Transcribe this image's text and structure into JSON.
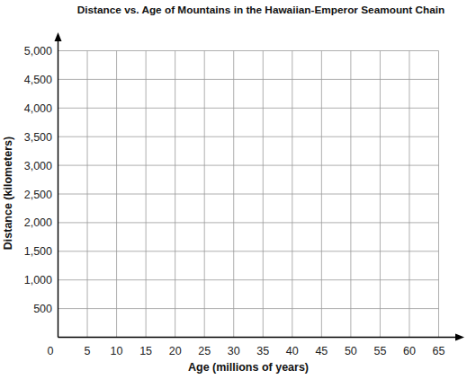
{
  "chart_data": {
    "type": "scatter",
    "title": "Distance vs. Age of Mountains in the Hawaiian-Emperor Seamount Chain",
    "x_label": "Age (millions of years)",
    "y_label": "Distance (kilometers)",
    "xlim": [
      0,
      65
    ],
    "xticks": [
      0,
      5,
      10,
      15,
      20,
      25,
      30,
      35,
      40,
      45,
      50,
      55,
      60,
      65
    ],
    "ylim": [
      0,
      5000
    ],
    "yticks": [
      {
        "value": 500,
        "label": "500"
      },
      {
        "value": 1000,
        "label": "1,000"
      },
      {
        "value": 1500,
        "label": "1,500"
      },
      {
        "value": 2000,
        "label": "2,000"
      },
      {
        "value": 2500,
        "label": "2,500"
      },
      {
        "value": 3000,
        "label": "3,000"
      },
      {
        "value": 3500,
        "label": "3,500"
      },
      {
        "value": 4000,
        "label": "4,000"
      },
      {
        "value": 4500,
        "label": "4,500"
      },
      {
        "value": 5000,
        "label": "5,000"
      }
    ],
    "grid": true
  }
}
